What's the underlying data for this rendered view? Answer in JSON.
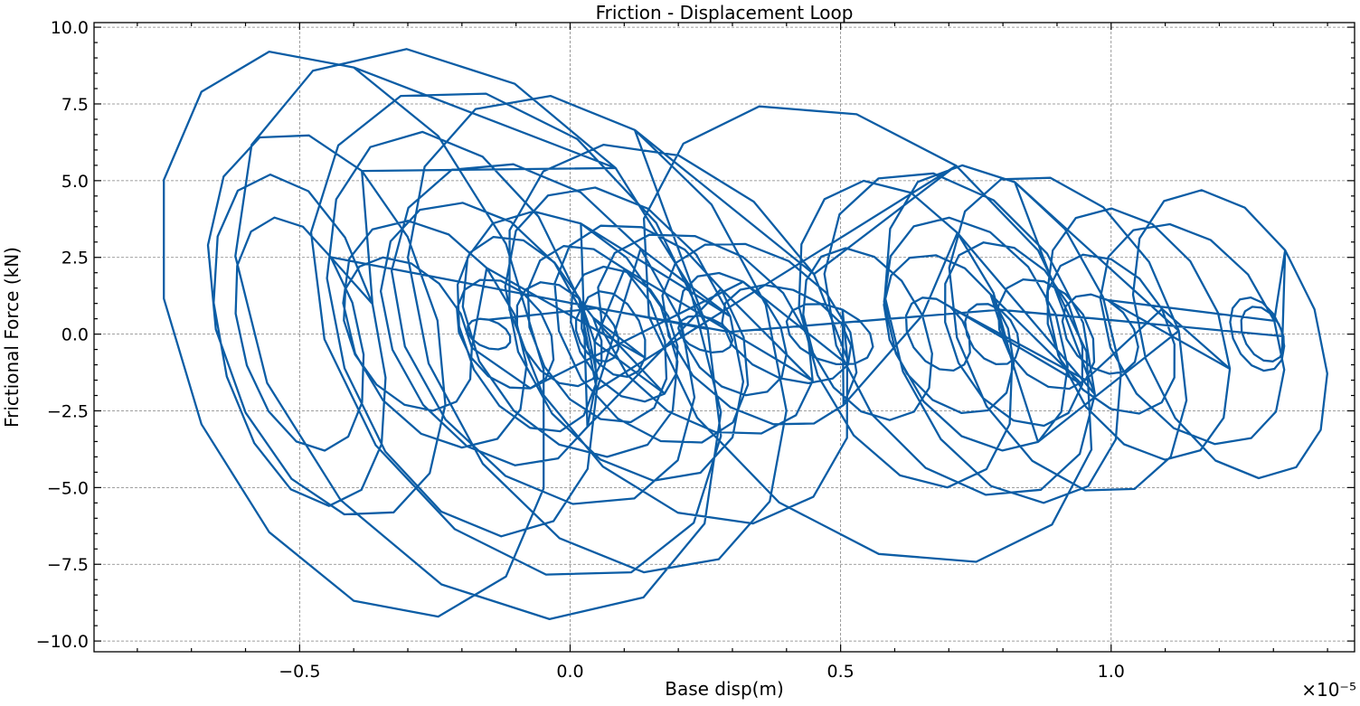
{
  "chart_data": {
    "type": "line",
    "title": "Friction - Displacement Loop",
    "xlabel": "Base disp(m)",
    "ylabel": "Frictional Force (kN)",
    "x_offset_label": "×10⁻⁵",
    "x_scale": 1e-05,
    "xlim": [
      -0.88,
      1.45
    ],
    "ylim": [
      -10.35,
      10.15
    ],
    "xticks": [
      -0.5,
      0.0,
      0.5,
      1.0
    ],
    "xtick_labels": [
      "−0.5",
      "0.0",
      "0.5",
      "1.0"
    ],
    "yticks": [
      -10.0,
      -7.5,
      -5.0,
      -2.5,
      0.0,
      2.5,
      5.0,
      7.5,
      10.0
    ],
    "ytick_labels": [
      "−10.0",
      "−7.5",
      "−5.0",
      "−2.5",
      "0.0",
      "2.5",
      "5.0",
      "7.5",
      "10.0"
    ],
    "grid": true,
    "color": "#0c5da5",
    "series": [
      {
        "centers": [
          [
            -0.5,
            0.0
          ],
          [
            -0.43,
            0.0
          ],
          [
            -0.33,
            0.0
          ],
          [
            -0.2,
            0.0
          ],
          [
            -0.1,
            0.0
          ],
          [
            0.0,
            0.0
          ],
          [
            0.05,
            0.0
          ],
          [
            0.1,
            0.0
          ],
          [
            0.15,
            0.0
          ],
          [
            0.25,
            0.0
          ],
          [
            0.35,
            0.0
          ],
          [
            0.45,
            0.0
          ],
          [
            0.55,
            0.0
          ],
          [
            0.65,
            0.0
          ],
          [
            0.7,
            0.0
          ],
          [
            0.78,
            0.0
          ],
          [
            0.85,
            0.0
          ],
          [
            0.92,
            0.0
          ],
          [
            1.0,
            0.0
          ],
          [
            1.1,
            0.0
          ],
          [
            1.2,
            0.0
          ],
          [
            1.25,
            0.0
          ]
        ],
        "loops": [
          {
            "center": [
              -0.4,
              0.0
            ],
            "rx": 0.36,
            "ry": 9.25,
            "phase": 0.0
          },
          {
            "center": [
              -0.17,
              0.0
            ],
            "rx": 0.45,
            "ry": 9.3,
            "phase": 0.6
          },
          {
            "center": [
              -0.45,
              0.3
            ],
            "rx": 0.22,
            "ry": 6.3,
            "phase": 0.3
          },
          {
            "center": [
              -0.5,
              -0.2
            ],
            "rx": 0.16,
            "ry": 5.4,
            "phase": 1.0
          },
          {
            "center": [
              -0.5,
              0.0
            ],
            "rx": 0.12,
            "ry": 3.8,
            "phase": 0.5
          },
          {
            "center": [
              -0.1,
              0.0
            ],
            "rx": 0.38,
            "ry": 8.0,
            "phase": 1.2
          },
          {
            "center": [
              0.05,
              0.0
            ],
            "rx": 0.35,
            "ry": 7.8,
            "phase": 0.2
          },
          {
            "center": [
              0.2,
              0.0
            ],
            "rx": 0.32,
            "ry": 6.2,
            "phase": 0.9
          },
          {
            "center": [
              0.55,
              0.0
            ],
            "rx": 0.42,
            "ry": 7.5,
            "phase": 0.4
          },
          {
            "center": [
              -0.2,
              0.0
            ],
            "rx": 0.25,
            "ry": 6.6,
            "phase": 1.5
          },
          {
            "center": [
              -0.05,
              0.0
            ],
            "rx": 0.28,
            "ry": 5.6,
            "phase": 0.7
          },
          {
            "center": [
              0.1,
              0.0
            ],
            "rx": 0.22,
            "ry": 4.8,
            "phase": 1.1
          },
          {
            "center": [
              0.0,
              0.0
            ],
            "rx": 0.2,
            "ry": 4.0,
            "phase": 0.1
          },
          {
            "center": [
              -0.15,
              0.0
            ],
            "rx": 0.2,
            "ry": 4.3,
            "phase": 2.0
          },
          {
            "center": [
              0.15,
              0.0
            ],
            "rx": 0.18,
            "ry": 3.6,
            "phase": 0.8
          },
          {
            "center": [
              0.25,
              0.0
            ],
            "rx": 0.2,
            "ry": 3.3,
            "phase": 1.7
          },
          {
            "center": [
              0.05,
              0.0
            ],
            "rx": 0.13,
            "ry": 2.9,
            "phase": 0.4
          },
          {
            "center": [
              -0.08,
              0.0
            ],
            "rx": 0.13,
            "ry": 3.2,
            "phase": 1.3
          },
          {
            "center": [
              0.1,
              0.0
            ],
            "rx": 0.1,
            "ry": 2.2,
            "phase": 2.3
          },
          {
            "center": [
              -0.02,
              0.0
            ],
            "rx": 0.08,
            "ry": 1.7,
            "phase": 0.9
          },
          {
            "center": [
              0.08,
              0.0
            ],
            "rx": 0.06,
            "ry": 1.4,
            "phase": 1.8
          },
          {
            "center": [
              -0.25,
              0.0
            ],
            "rx": 0.17,
            "ry": 3.7,
            "phase": 0.6
          },
          {
            "center": [
              -0.3,
              0.0
            ],
            "rx": 0.12,
            "ry": 2.5,
            "phase": 1.4
          },
          {
            "center": [
              -0.12,
              0.0
            ],
            "rx": 0.09,
            "ry": 1.8,
            "phase": 2.6
          },
          {
            "center": [
              0.3,
              0.0
            ],
            "rx": 0.1,
            "ry": 2.0,
            "phase": 0.2
          },
          {
            "center": [
              0.4,
              0.0
            ],
            "rx": 0.12,
            "ry": 1.6,
            "phase": 1.9
          },
          {
            "center": [
              0.48,
              0.0
            ],
            "rx": 0.08,
            "ry": 1.0,
            "phase": 0.3
          },
          {
            "center": [
              0.35,
              0.0
            ],
            "rx": 0.18,
            "ry": 3.0,
            "phase": 2.1
          },
          {
            "center": [
              0.55,
              0.0
            ],
            "rx": 0.12,
            "ry": 2.8,
            "phase": 1.0
          },
          {
            "center": [
              0.62,
              0.0
            ],
            "rx": 0.2,
            "ry": 5.0,
            "phase": 0.5
          },
          {
            "center": [
              0.72,
              0.0
            ],
            "rx": 0.25,
            "ry": 5.3,
            "phase": 1.6
          },
          {
            "center": [
              0.8,
              0.0
            ],
            "rx": 0.22,
            "ry": 5.5,
            "phase": 0.1
          },
          {
            "center": [
              0.92,
              0.0
            ],
            "rx": 0.22,
            "ry": 5.2,
            "phase": 1.2
          },
          {
            "center": [
              0.75,
              0.0
            ],
            "rx": 0.17,
            "ry": 3.8,
            "phase": 2.4
          },
          {
            "center": [
              0.7,
              0.0
            ],
            "rx": 0.12,
            "ry": 2.6,
            "phase": 0.7
          },
          {
            "center": [
              0.82,
              0.0
            ],
            "rx": 0.13,
            "ry": 3.0,
            "phase": 1.8
          },
          {
            "center": [
              0.68,
              0.0
            ],
            "rx": 0.06,
            "ry": 1.2,
            "phase": 0.4
          },
          {
            "center": [
              0.88,
              0.0
            ],
            "rx": 0.09,
            "ry": 1.8,
            "phase": 2.2
          },
          {
            "center": [
              1.0,
              0.0
            ],
            "rx": 0.12,
            "ry": 2.6,
            "phase": 0.9
          },
          {
            "center": [
              1.05,
              0.0
            ],
            "rx": 0.17,
            "ry": 4.1,
            "phase": 1.5
          },
          {
            "center": [
              0.98,
              0.0
            ],
            "rx": 0.07,
            "ry": 1.3,
            "phase": 0.2
          },
          {
            "center": [
              1.15,
              0.0
            ],
            "rx": 0.17,
            "ry": 3.6,
            "phase": 1.1
          },
          {
            "center": [
              1.22,
              0.0
            ],
            "rx": 0.18,
            "ry": 4.7,
            "phase": 0.6
          },
          {
            "center": [
              1.27,
              0.0
            ],
            "rx": 0.05,
            "ry": 1.2,
            "phase": 2.0
          },
          {
            "center": [
              1.28,
              0.0
            ],
            "rx": 0.04,
            "ry": 0.9,
            "phase": 1.3
          },
          {
            "center": [
              0.78,
              0.0
            ],
            "rx": 0.05,
            "ry": 1.0,
            "phase": 0.3
          },
          {
            "center": [
              0.25,
              0.0
            ],
            "rx": 0.05,
            "ry": 0.6,
            "phase": 1.1
          },
          {
            "center": [
              0.05,
              0.0
            ],
            "rx": 0.04,
            "ry": 0.9,
            "phase": 0.0
          },
          {
            "center": [
              -0.15,
              0.0
            ],
            "rx": 0.04,
            "ry": 0.5,
            "phase": 0.0
          }
        ]
      }
    ]
  }
}
